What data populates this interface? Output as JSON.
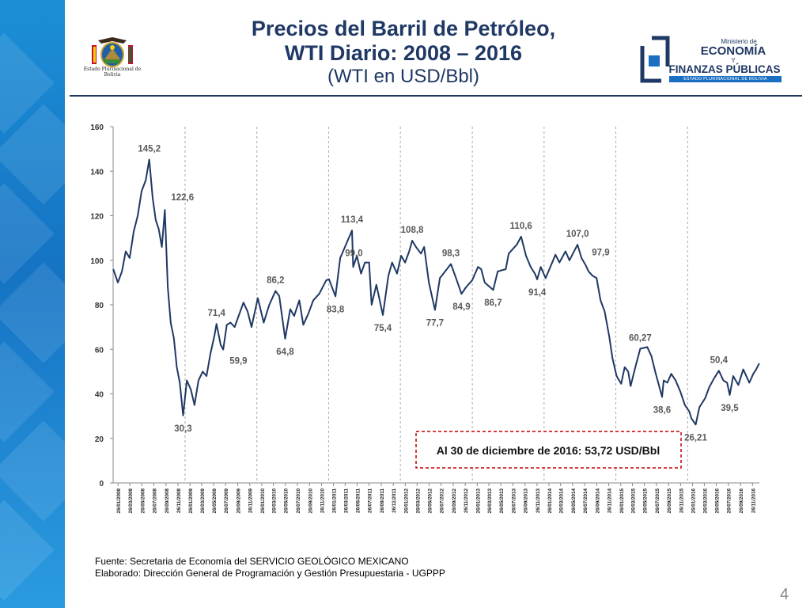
{
  "title": {
    "line1": "Precios del Barril de Petróleo,",
    "line2": "WTI Diario: 2008 – 2016",
    "line3": "(WTI en USD/Bbl)"
  },
  "seal_caption": "Estado Plurinacional de Bolivia",
  "ministry_logo": {
    "small": "Ministerio de",
    "line1": "ECONOMÍA",
    "y": "Y",
    "line2": "FINANZAS PÚBLICAS",
    "band": "ESTADO PLURINACIONAL DE BOLIVIA"
  },
  "chart_data": {
    "type": "line",
    "ylim": [
      0,
      160
    ],
    "yticks": [
      0,
      20,
      40,
      60,
      80,
      100,
      120,
      140,
      160
    ],
    "grid": false,
    "line_color": "#1f3864",
    "x_tick_labels": [
      "26/01/2008",
      "26/03/2008",
      "26/05/2008",
      "26/07/2008",
      "26/09/2008",
      "26/11/2008",
      "26/01/2009",
      "26/03/2009",
      "26/05/2009",
      "26/07/2009",
      "26/09/2009",
      "26/11/2009",
      "26/01/2010",
      "26/03/2010",
      "26/05/2010",
      "26/07/2010",
      "26/09/2010",
      "26/11/2010",
      "26/01/2011",
      "26/03/2011",
      "26/05/2011",
      "26/07/2011",
      "26/09/2011",
      "26/11/2011",
      "26/01/2012",
      "26/03/2012",
      "26/05/2012",
      "26/07/2012",
      "26/09/2012",
      "26/11/2012",
      "26/01/2013",
      "26/03/2013",
      "26/05/2013",
      "26/07/2013",
      "26/09/2013",
      "26/11/2013",
      "26/01/2014",
      "26/03/2014",
      "26/05/2014",
      "26/07/2014",
      "26/09/2014",
      "26/11/2014",
      "26/01/2015",
      "26/03/2015",
      "26/05/2015",
      "26/07/2015",
      "26/09/2015",
      "26/11/2015",
      "26/01/2016",
      "26/03/2016",
      "26/05/2016",
      "26/07/2016",
      "26/09/2016",
      "26/11/2016"
    ],
    "year_separators": [
      "01/01/2009",
      "01/01/2010",
      "01/01/2011",
      "01/01/2012",
      "01/01/2013",
      "01/01/2014",
      "01/01/2015",
      "01/01/2016"
    ],
    "series": [
      {
        "points": [
          [
            "02/01/2008",
            96.0
          ],
          [
            "25/01/2008",
            90.0
          ],
          [
            "15/02/2008",
            95.0
          ],
          [
            "05/03/2008",
            104.0
          ],
          [
            "25/03/2008",
            101.0
          ],
          [
            "15/04/2008",
            113.0
          ],
          [
            "05/05/2008",
            120.0
          ],
          [
            "25/05/2008",
            131.0
          ],
          [
            "15/06/2008",
            136.0
          ],
          [
            "03/07/2008",
            145.2
          ],
          [
            "20/07/2008",
            128.0
          ],
          [
            "05/08/2008",
            118.0
          ],
          [
            "20/08/2008",
            114.0
          ],
          [
            "05/09/2008",
            106.0
          ],
          [
            "20/09/2008",
            122.6
          ],
          [
            "05/10/2008",
            88.0
          ],
          [
            "20/10/2008",
            72.0
          ],
          [
            "05/11/2008",
            65.0
          ],
          [
            "20/11/2008",
            52.0
          ],
          [
            "05/12/2008",
            45.0
          ],
          [
            "22/12/2008",
            30.3
          ],
          [
            "10/01/2009",
            46.0
          ],
          [
            "30/01/2009",
            42.0
          ],
          [
            "18/02/2009",
            35.0
          ],
          [
            "10/03/2009",
            46.0
          ],
          [
            "01/04/2009",
            50.0
          ],
          [
            "20/04/2009",
            48.0
          ],
          [
            "10/05/2009",
            58.0
          ],
          [
            "30/05/2009",
            66.0
          ],
          [
            "10/06/2009",
            71.4
          ],
          [
            "01/07/2009",
            62.0
          ],
          [
            "14/07/2009",
            59.9
          ],
          [
            "01/08/2009",
            71.0
          ],
          [
            "20/08/2009",
            72.0
          ],
          [
            "10/09/2009",
            70.0
          ],
          [
            "25/10/2009",
            81.0
          ],
          [
            "15/11/2009",
            77.0
          ],
          [
            "05/12/2009",
            70.0
          ],
          [
            "06/01/2010",
            83.0
          ],
          [
            "05/02/2010",
            72.0
          ],
          [
            "05/03/2010",
            80.0
          ],
          [
            "06/04/2010",
            86.2
          ],
          [
            "25/04/2010",
            84.0
          ],
          [
            "25/05/2010",
            64.8
          ],
          [
            "20/06/2010",
            78.0
          ],
          [
            "10/07/2010",
            75.0
          ],
          [
            "05/08/2010",
            82.0
          ],
          [
            "25/08/2010",
            71.0
          ],
          [
            "20/09/2010",
            76.0
          ],
          [
            "15/10/2010",
            82.0
          ],
          [
            "15/11/2010",
            85.0
          ],
          [
            "20/12/2010",
            91.0
          ],
          [
            "03/01/2011",
            91.5
          ],
          [
            "05/02/2011",
            83.8
          ],
          [
            "01/03/2011",
            101.0
          ],
          [
            "30/04/2011",
            113.4
          ],
          [
            "06/05/2011",
            97.0
          ],
          [
            "25/05/2011",
            102.0
          ],
          [
            "15/06/2011",
            94.0
          ],
          [
            "05/07/2011",
            99.0
          ],
          [
            "26/07/2011",
            99.0
          ],
          [
            "08/08/2011",
            80.0
          ],
          [
            "01/09/2011",
            89.0
          ],
          [
            "04/10/2011",
            75.4
          ],
          [
            "01/11/2011",
            93.0
          ],
          [
            "20/11/2011",
            99.0
          ],
          [
            "15/12/2011",
            94.0
          ],
          [
            "05/01/2012",
            102.0
          ],
          [
            "25/01/2012",
            99.0
          ],
          [
            "15/02/2012",
            104.0
          ],
          [
            "01/03/2012",
            108.8
          ],
          [
            "20/03/2012",
            106.0
          ],
          [
            "15/04/2012",
            103.0
          ],
          [
            "01/05/2012",
            106.0
          ],
          [
            "25/05/2012",
            90.0
          ],
          [
            "25/06/2012",
            77.7
          ],
          [
            "20/07/2012",
            92.0
          ],
          [
            "14/09/2012",
            98.3
          ],
          [
            "10/10/2012",
            92.0
          ],
          [
            "07/11/2012",
            84.9
          ],
          [
            "01/12/2012",
            88.0
          ],
          [
            "31/12/2012",
            91.0
          ],
          [
            "30/01/2013",
            97.0
          ],
          [
            "15/02/2013",
            96.0
          ],
          [
            "05/03/2013",
            90.0
          ],
          [
            "17/04/2013",
            86.7
          ],
          [
            "10/05/2013",
            95.0
          ],
          [
            "20/06/2013",
            96.0
          ],
          [
            "05/07/2013",
            103.0
          ],
          [
            "15/08/2013",
            107.0
          ],
          [
            "06/09/2013",
            110.6
          ],
          [
            "01/10/2013",
            102.0
          ],
          [
            "25/10/2013",
            97.0
          ],
          [
            "15/11/2013",
            94.0
          ],
          [
            "27/11/2013",
            91.4
          ],
          [
            "15/12/2013",
            97.0
          ],
          [
            "09/01/2014",
            92.0
          ],
          [
            "28/02/2014",
            102.5
          ],
          [
            "20/03/2014",
            99.0
          ],
          [
            "20/04/2014",
            104.0
          ],
          [
            "10/05/2014",
            100.0
          ],
          [
            "20/06/2014",
            107.0
          ],
          [
            "10/07/2014",
            101.0
          ],
          [
            "31/07/2014",
            97.9
          ],
          [
            "15/08/2014",
            95.0
          ],
          [
            "05/09/2014",
            93.0
          ],
          [
            "25/09/2014",
            92.0
          ],
          [
            "15/10/2014",
            82.0
          ],
          [
            "05/11/2014",
            77.0
          ],
          [
            "28/11/2014",
            66.0
          ],
          [
            "15/12/2014",
            56.0
          ],
          [
            "05/01/2015",
            48.0
          ],
          [
            "28/01/2015",
            44.5
          ],
          [
            "15/02/2015",
            52.0
          ],
          [
            "05/03/2015",
            50.0
          ],
          [
            "17/03/2015",
            43.5
          ],
          [
            "10/04/2015",
            52.0
          ],
          [
            "05/05/2015",
            60.27
          ],
          [
            "10/06/2015",
            61.0
          ],
          [
            "01/07/2015",
            57.0
          ],
          [
            "20/07/2015",
            50.0
          ],
          [
            "24/08/2015",
            38.6
          ],
          [
            "01/09/2015",
            46.0
          ],
          [
            "20/09/2015",
            45.0
          ],
          [
            "10/10/2015",
            49.0
          ],
          [
            "01/11/2015",
            46.0
          ],
          [
            "25/11/2015",
            41.0
          ],
          [
            "18/12/2015",
            35.0
          ],
          [
            "10/01/2016",
            32.0
          ],
          [
            "20/01/2016",
            29.0
          ],
          [
            "11/02/2016",
            26.21
          ],
          [
            "01/03/2016",
            34.0
          ],
          [
            "30/03/2016",
            38.0
          ],
          [
            "20/04/2016",
            43.0
          ],
          [
            "15/05/2016",
            47.0
          ],
          [
            "08/06/2016",
            50.4
          ],
          [
            "01/07/2016",
            46.0
          ],
          [
            "20/07/2016",
            45.0
          ],
          [
            "02/08/2016",
            39.5
          ],
          [
            "20/08/2016",
            48.0
          ],
          [
            "15/09/2016",
            44.0
          ],
          [
            "10/10/2016",
            51.0
          ],
          [
            "10/11/2016",
            45.0
          ],
          [
            "30/11/2016",
            49.0
          ],
          [
            "15/12/2016",
            51.0
          ],
          [
            "30/12/2016",
            53.72
          ]
        ]
      }
    ],
    "annotations": [
      {
        "text": "145,2",
        "x": "03/07/2008",
        "y": 145.2,
        "pos": "above"
      },
      {
        "text": "122,6",
        "x": "20/09/2008",
        "y": 122.6,
        "pos": "right"
      },
      {
        "text": "30,3",
        "x": "22/12/2008",
        "y": 30.3,
        "pos": "below"
      },
      {
        "text": "71,4",
        "x": "10/06/2009",
        "y": 71.4,
        "pos": "above"
      },
      {
        "text": "59,9",
        "x": "14/07/2009",
        "y": 59.9,
        "pos": "below-right"
      },
      {
        "text": "86,2",
        "x": "06/04/2010",
        "y": 86.2,
        "pos": "above"
      },
      {
        "text": "64,8",
        "x": "25/05/2010",
        "y": 64.8,
        "pos": "below"
      },
      {
        "text": "83,8",
        "x": "05/02/2011",
        "y": 83.8,
        "pos": "below"
      },
      {
        "text": "113,4",
        "x": "30/04/2011",
        "y": 113.4,
        "pos": "above"
      },
      {
        "text": "99,0",
        "x": "26/07/2011",
        "y": 99.0,
        "pos": "above-left"
      },
      {
        "text": "75,4",
        "x": "04/10/2011",
        "y": 75.4,
        "pos": "below"
      },
      {
        "text": "108,8",
        "x": "01/03/2012",
        "y": 108.8,
        "pos": "above"
      },
      {
        "text": "77,7",
        "x": "25/06/2012",
        "y": 77.7,
        "pos": "below"
      },
      {
        "text": "98,3",
        "x": "14/09/2012",
        "y": 98.3,
        "pos": "above"
      },
      {
        "text": "84,9",
        "x": "07/11/2012",
        "y": 84.9,
        "pos": "below"
      },
      {
        "text": "86,7",
        "x": "17/04/2013",
        "y": 86.7,
        "pos": "below"
      },
      {
        "text": "110,6",
        "x": "06/09/2013",
        "y": 110.6,
        "pos": "above"
      },
      {
        "text": "91,4",
        "x": "27/11/2013",
        "y": 91.4,
        "pos": "below"
      },
      {
        "text": "107,0",
        "x": "20/06/2014",
        "y": 107.0,
        "pos": "above"
      },
      {
        "text": "97,9",
        "x": "31/07/2014",
        "y": 97.9,
        "pos": "right"
      },
      {
        "text": "60,27",
        "x": "05/05/2015",
        "y": 60.27,
        "pos": "above"
      },
      {
        "text": "38,6",
        "x": "24/08/2015",
        "y": 38.6,
        "pos": "below"
      },
      {
        "text": "26,21",
        "x": "11/02/2016",
        "y": 26.21,
        "pos": "below"
      },
      {
        "text": "50,4",
        "x": "08/06/2016",
        "y": 50.4,
        "pos": "above"
      },
      {
        "text": "39,5",
        "x": "02/08/2016",
        "y": 39.5,
        "pos": "below"
      }
    ],
    "callout": "Al 30 de diciembre de 2016: 53,72 USD/Bbl"
  },
  "footer": {
    "source": "Fuente: Secretaria de Economía del SERVICIO GEOLÓGICO MEXICANO",
    "elaborated": "Elaborado: Dirección General de Programación y Gestión Presupuestaria - UGPPP"
  },
  "page_number": "4"
}
